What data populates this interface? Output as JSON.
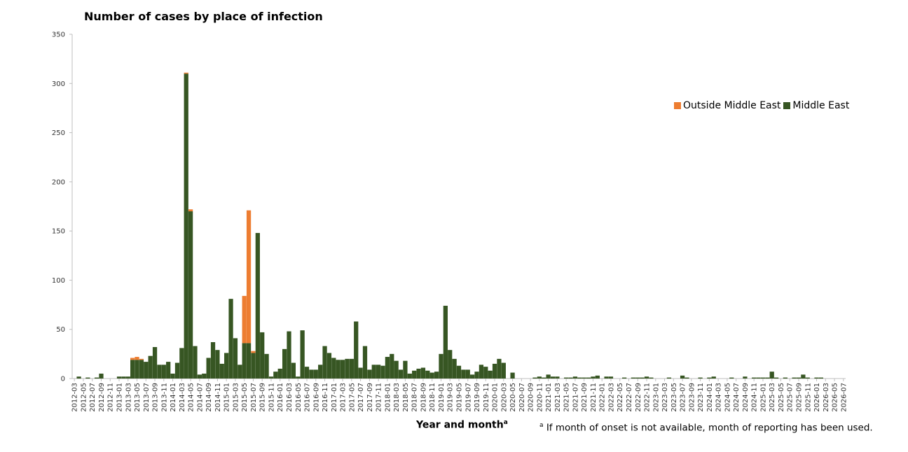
{
  "chart_data": {
    "type": "bar",
    "stacked": true,
    "title": "Number of cases by place of infection",
    "xlabel": "Year and month",
    "xlabel_superscript": "a",
    "ylabel": "",
    "ylim": [
      0,
      350
    ],
    "yticks": [
      0,
      50,
      100,
      150,
      200,
      250,
      300,
      350
    ],
    "legend_position": "top-right",
    "footnote_marker": "a",
    "footnote": "If month of onset is not available, month of reporting has been used.",
    "colors": {
      "outside": "#ed7d31",
      "middle_east": "#375623"
    },
    "start_month": "2012-03",
    "end_month": "2026-07",
    "tick_interval_months": 2,
    "series": [
      {
        "name": "Outside Middle East",
        "color": "#ed7d31",
        "values": {
          "2013-04": 2,
          "2013-05": 3,
          "2013-06": 1,
          "2014-04": 1,
          "2014-05": 2,
          "2015-05": 48,
          "2015-06": 135,
          "2015-07": 2
        }
      },
      {
        "name": "Middle East",
        "color": "#375623",
        "values": {
          "2012-04": 2,
          "2012-06": 1,
          "2012-08": 1,
          "2012-09": 5,
          "2013-01": 2,
          "2013-02": 2,
          "2013-03": 2,
          "2013-04": 19,
          "2013-05": 19,
          "2013-06": 19,
          "2013-07": 17,
          "2013-08": 23,
          "2013-09": 32,
          "2013-10": 14,
          "2013-11": 14,
          "2013-12": 17,
          "2014-01": 5,
          "2014-02": 16,
          "2014-03": 31,
          "2014-04": 310,
          "2014-05": 170,
          "2014-06": 33,
          "2014-07": 4,
          "2014-08": 5,
          "2014-09": 21,
          "2014-10": 37,
          "2014-11": 29,
          "2014-12": 15,
          "2015-01": 26,
          "2015-02": 81,
          "2015-03": 41,
          "2015-04": 14,
          "2015-05": 36,
          "2015-06": 36,
          "2015-07": 26,
          "2015-08": 148,
          "2015-09": 47,
          "2015-10": 25,
          "2015-11": 2,
          "2015-12": 7,
          "2016-01": 10,
          "2016-02": 30,
          "2016-03": 48,
          "2016-04": 16,
          "2016-05": 2,
          "2016-06": 49,
          "2016-07": 12,
          "2016-08": 9,
          "2016-09": 9,
          "2016-10": 14,
          "2016-11": 33,
          "2016-12": 26,
          "2017-01": 21,
          "2017-02": 19,
          "2017-03": 19,
          "2017-04": 20,
          "2017-05": 20,
          "2017-06": 58,
          "2017-07": 11,
          "2017-08": 33,
          "2017-09": 9,
          "2017-10": 14,
          "2017-11": 14,
          "2017-12": 13,
          "2018-01": 22,
          "2018-02": 25,
          "2018-03": 18,
          "2018-04": 9,
          "2018-05": 18,
          "2018-06": 5,
          "2018-07": 8,
          "2018-08": 10,
          "2018-09": 11,
          "2018-10": 8,
          "2018-11": 6,
          "2018-12": 7,
          "2019-01": 25,
          "2019-02": 74,
          "2019-03": 29,
          "2019-04": 20,
          "2019-05": 13,
          "2019-06": 9,
          "2019-07": 9,
          "2019-08": 4,
          "2019-09": 7,
          "2019-10": 14,
          "2019-11": 12,
          "2019-12": 8,
          "2020-01": 15,
          "2020-02": 20,
          "2020-03": 16,
          "2020-05": 6,
          "2020-10": 1,
          "2020-11": 2,
          "2020-12": 1,
          "2021-01": 4,
          "2021-02": 2,
          "2021-03": 2,
          "2021-05": 1,
          "2021-06": 1,
          "2021-07": 2,
          "2021-08": 1,
          "2021-09": 1,
          "2021-10": 1,
          "2021-11": 2,
          "2021-12": 3,
          "2022-02": 2,
          "2022-03": 2,
          "2022-06": 1,
          "2022-08": 1,
          "2022-09": 1,
          "2022-10": 1,
          "2022-11": 2,
          "2022-12": 1,
          "2023-04": 1,
          "2023-07": 3,
          "2023-08": 1,
          "2023-11": 1,
          "2024-01": 1,
          "2024-02": 2,
          "2024-06": 1,
          "2024-09": 2,
          "2024-11": 1,
          "2024-12": 1,
          "2025-01": 1,
          "2025-02": 1,
          "2025-03": 7,
          "2025-04": 1,
          "2025-06": 1,
          "2025-08": 1,
          "2025-09": 1,
          "2025-10": 4,
          "2025-11": 1,
          "2026-01": 1,
          "2026-02": 1
        }
      }
    ]
  }
}
